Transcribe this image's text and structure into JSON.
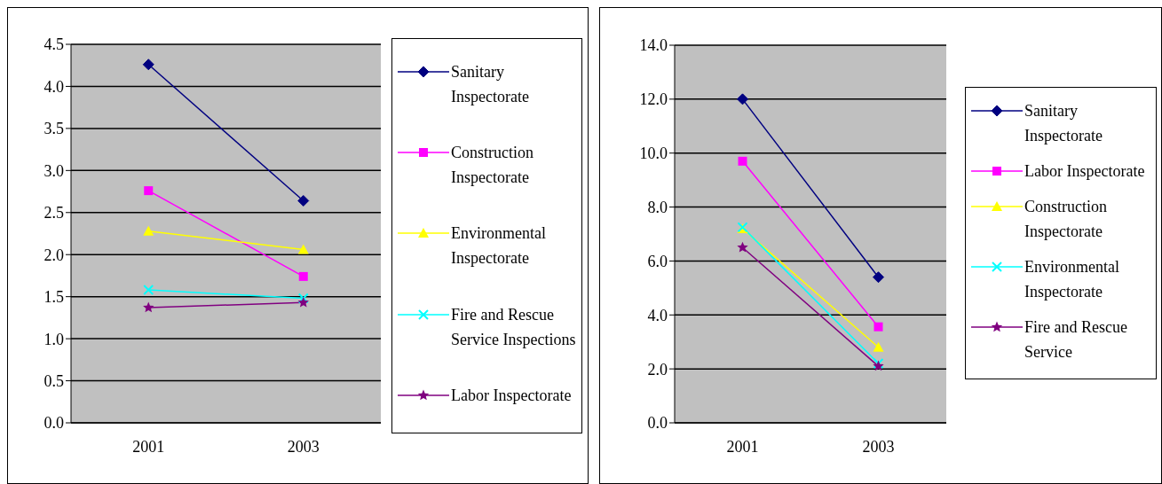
{
  "chart_data": [
    {
      "type": "line",
      "categories": [
        "2001",
        "2003"
      ],
      "ylim": [
        0,
        4.5
      ],
      "yticks": [
        {
          "value": 0,
          "label": "0.0"
        },
        {
          "value": 0.5,
          "label": "0.5"
        },
        {
          "value": 1,
          "label": "1.0"
        },
        {
          "value": 1.5,
          "label": "1.5"
        },
        {
          "value": 2,
          "label": "2.0"
        },
        {
          "value": 2.5,
          "label": "2.5"
        },
        {
          "value": 3,
          "label": "3.0"
        },
        {
          "value": 3.5,
          "label": "3.5"
        },
        {
          "value": 4,
          "label": "4.0"
        },
        {
          "value": 4.5,
          "label": "4.5"
        }
      ],
      "grid": "y",
      "legend": "right",
      "line_style": "solid",
      "series": [
        {
          "name": "Sanitary Inspectorate",
          "color": "#000080",
          "marker": "diamond",
          "values": [
            4.26,
            2.64
          ]
        },
        {
          "name": "Construction Inspectorate",
          "color": "#ff00ff",
          "marker": "square",
          "values": [
            2.76,
            1.74
          ]
        },
        {
          "name": "Environmental Inspectorate",
          "color": "#ffff00",
          "marker": "triangle",
          "values": [
            2.28,
            2.06
          ]
        },
        {
          "name": "Fire and Rescue Service Inspections",
          "color": "#00ffff",
          "marker": "cross",
          "values": [
            1.58,
            1.48
          ]
        },
        {
          "name": "Labor Inspectorate",
          "color": "#800080",
          "marker": "star",
          "values": [
            1.37,
            1.43
          ]
        }
      ]
    },
    {
      "type": "line",
      "categories": [
        "2001",
        "2003"
      ],
      "ylim": [
        0,
        14
      ],
      "yticks": [
        {
          "value": 0,
          "label": "0.0"
        },
        {
          "value": 2,
          "label": "2.0"
        },
        {
          "value": 4,
          "label": "4.0"
        },
        {
          "value": 6,
          "label": "6.0"
        },
        {
          "value": 8,
          "label": "8.0"
        },
        {
          "value": 10,
          "label": "10.0"
        },
        {
          "value": 12,
          "label": "12.0"
        },
        {
          "value": 14,
          "label": "14.0"
        }
      ],
      "grid": "y",
      "legend": "right",
      "line_style": "solid",
      "series": [
        {
          "name": "Sanitary Inspectorate",
          "color": "#000080",
          "marker": "diamond",
          "values": [
            12.0,
            5.4
          ]
        },
        {
          "name": "Labor Inspectorate",
          "color": "#ff00ff",
          "marker": "square",
          "values": [
            9.7,
            3.56
          ]
        },
        {
          "name": "Construction Inspectorate",
          "color": "#ffff00",
          "marker": "triangle",
          "values": [
            7.2,
            2.8
          ]
        },
        {
          "name": "Environmental Inspectorate",
          "color": "#00ffff",
          "marker": "cross",
          "values": [
            7.25,
            2.2
          ]
        },
        {
          "name": "Fire and Rescue Service",
          "color": "#800080",
          "marker": "star",
          "values": [
            6.5,
            2.1
          ]
        }
      ]
    }
  ]
}
